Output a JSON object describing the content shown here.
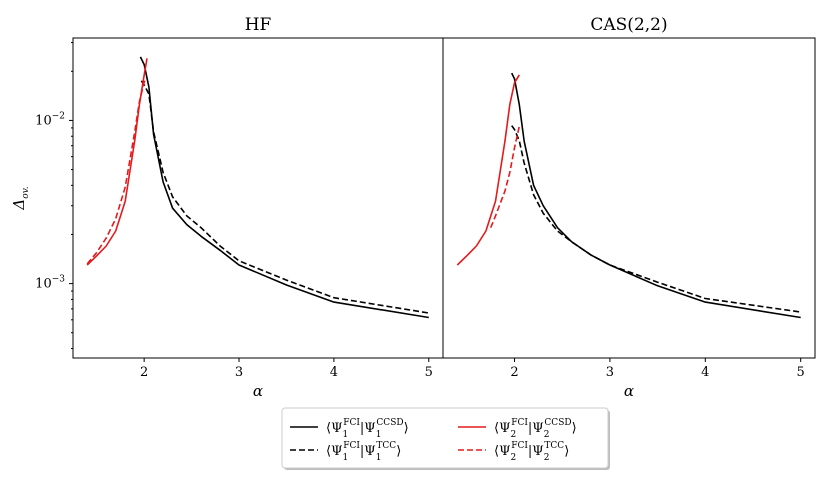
{
  "chart_data": {
    "type": "line",
    "yscale": "log",
    "ylim": [
      0.00035,
      0.032
    ],
    "xlim": [
      1.25,
      5.15
    ],
    "xticks": [
      2,
      3,
      4,
      5
    ],
    "xtick_labels": [
      "2",
      "3",
      "4",
      "5"
    ],
    "ytick_labels": [
      {
        "value": 0.01,
        "base": "10",
        "exp": "−2"
      },
      {
        "value": 0.001,
        "base": "10",
        "exp": "−3"
      }
    ],
    "ylabel": {
      "main": "Δ",
      "sub": "ov."
    },
    "xlabel": "α",
    "colors": {
      "state1": "#000000",
      "state2": "#e41a1c"
    },
    "panels": [
      {
        "title": "HF",
        "series": [
          {
            "key": "s1_ccsd",
            "color": "#000000",
            "dash": false,
            "x": [
              1.96,
              2.0,
              2.05,
              2.1,
              2.2,
              2.3,
              2.45,
              2.6,
              2.8,
              3.0,
              3.5,
              4.0,
              5.0
            ],
            "y": [
              0.0245,
              0.022,
              0.016,
              0.0082,
              0.0042,
              0.0029,
              0.0023,
              0.00195,
              0.0016,
              0.0013,
              0.00098,
              0.00077,
              0.00062
            ]
          },
          {
            "key": "s1_tcc",
            "color": "#000000",
            "dash": true,
            "x": [
              1.97,
              2.0,
              2.05,
              2.1,
              2.2,
              2.3,
              2.45,
              2.6,
              2.8,
              3.0,
              3.5,
              4.0,
              5.0
            ],
            "y": [
              0.0175,
              0.0165,
              0.0145,
              0.0085,
              0.0048,
              0.0034,
              0.0026,
              0.0022,
              0.0017,
              0.00138,
              0.00105,
              0.00082,
              0.00066
            ]
          },
          {
            "key": "s2_ccsd",
            "color": "#e41a1c",
            "dash": false,
            "x": [
              1.4,
              1.5,
              1.6,
              1.7,
              1.8,
              1.9,
              1.95,
              2.0,
              2.03
            ],
            "y": [
              0.0013,
              0.00148,
              0.0017,
              0.0021,
              0.0032,
              0.0075,
              0.0125,
              0.019,
              0.024
            ]
          },
          {
            "key": "s2_tcc",
            "color": "#e41a1c",
            "dash": true,
            "x": [
              1.4,
              1.5,
              1.6,
              1.7,
              1.8,
              1.9,
              1.95,
              2.0,
              2.03
            ],
            "y": [
              0.00132,
              0.00155,
              0.0019,
              0.0025,
              0.0039,
              0.0085,
              0.013,
              0.0172,
              0.018
            ]
          }
        ]
      },
      {
        "title": "CAS(2,2)",
        "series": [
          {
            "key": "s1_ccsd",
            "color": "#000000",
            "dash": false,
            "x": [
              1.97,
              2.0,
              2.05,
              2.1,
              2.2,
              2.3,
              2.45,
              2.6,
              2.8,
              3.0,
              3.5,
              4.0,
              5.0
            ],
            "y": [
              0.0195,
              0.018,
              0.0125,
              0.0075,
              0.004,
              0.003,
              0.0022,
              0.0018,
              0.0015,
              0.0013,
              0.00097,
              0.00077,
              0.00062
            ]
          },
          {
            "key": "s1_tcc",
            "color": "#000000",
            "dash": true,
            "x": [
              1.97,
              2.0,
              2.05,
              2.1,
              2.2,
              2.3,
              2.45,
              2.6,
              2.8,
              3.0,
              3.5,
              4.0,
              5.0
            ],
            "y": [
              0.0093,
              0.0088,
              0.0075,
              0.0055,
              0.0035,
              0.0027,
              0.0021,
              0.0018,
              0.0015,
              0.0013,
              0.00102,
              0.00081,
              0.00067
            ]
          },
          {
            "key": "s2_ccsd",
            "color": "#e41a1c",
            "dash": false,
            "x": [
              1.4,
              1.5,
              1.6,
              1.7,
              1.8,
              1.9,
              1.95,
              2.0,
              2.05
            ],
            "y": [
              0.0013,
              0.00148,
              0.0017,
              0.0021,
              0.0032,
              0.0075,
              0.0125,
              0.017,
              0.019
            ]
          },
          {
            "key": "s2_tcc",
            "color": "#e41a1c",
            "dash": true,
            "x": [
              1.75,
              1.8,
              1.9,
              1.95,
              2.0,
              2.05
            ],
            "y": [
              0.0022,
              0.0026,
              0.0037,
              0.0048,
              0.0068,
              0.0092
            ]
          }
        ]
      }
    ],
    "legend": {
      "placement": "bottom-center",
      "entries": [
        {
          "key": "s1_ccsd",
          "color": "#000000",
          "dash": false,
          "state": "1",
          "method": "CCSD"
        },
        {
          "key": "s2_ccsd",
          "color": "#e41a1c",
          "dash": false,
          "state": "2",
          "method": "CCSD"
        },
        {
          "key": "s1_tcc",
          "color": "#000000",
          "dash": true,
          "state": "1",
          "method": "TCC"
        },
        {
          "key": "s2_tcc",
          "color": "#e41a1c",
          "dash": true,
          "state": "2",
          "method": "TCC"
        }
      ],
      "bra": "Ψ",
      "bra_sup": "FCI",
      "ket": "Ψ"
    }
  }
}
